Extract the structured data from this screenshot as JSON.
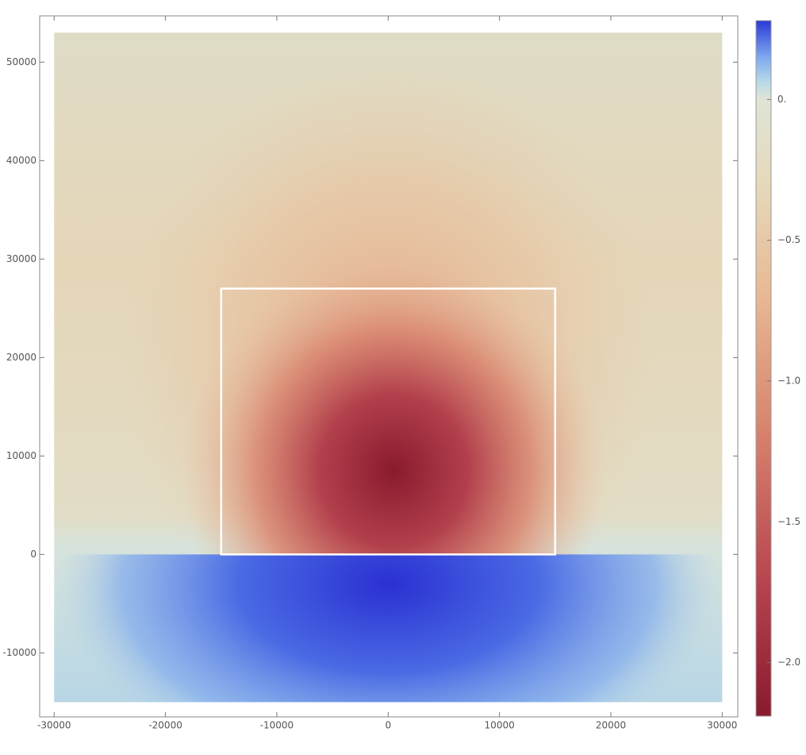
{
  "chart_data": {
    "type": "density",
    "xlim": [
      -31300,
      31400
    ],
    "ylim": [
      -16500,
      54700
    ],
    "xticks": [
      -30000,
      -20000,
      -10000,
      0,
      10000,
      20000,
      30000
    ],
    "yticks": [
      -10000,
      0,
      10000,
      20000,
      30000,
      40000,
      50000
    ],
    "plot_range": {
      "x": [
        -30000,
        30000
      ],
      "y": [
        -15000,
        53000
      ]
    },
    "rectangle": {
      "x": [
        -15000,
        15000
      ],
      "y": [
        0,
        27000
      ],
      "color": "#ffffff"
    },
    "colorbar": {
      "clim": [
        -2.19,
        0.28
      ],
      "ticks": [
        {
          "value": 0,
          "label": "0."
        },
        {
          "value": -0.5,
          "label": "−0.5"
        },
        {
          "value": -1,
          "label": "−1.0"
        },
        {
          "value": -1.5,
          "label": "−1.5"
        },
        {
          "value": -2,
          "label": "−2.0"
        }
      ],
      "colorscale": [
        {
          "value": 0.28,
          "color": "#2a3ad6"
        },
        {
          "value": 0.15,
          "color": "#7fa8ee"
        },
        {
          "value": 0.06,
          "color": "#b9dbe8"
        },
        {
          "value": 0,
          "color": "#dfe4d6"
        },
        {
          "value": -0.3,
          "color": "#e6d9bb"
        },
        {
          "value": -0.7,
          "color": "#e8b893"
        },
        {
          "value": -1.2,
          "color": "#d6806c"
        },
        {
          "value": -1.7,
          "color": "#b84650"
        },
        {
          "value": -2.19,
          "color": "#891a2e"
        }
      ]
    }
  }
}
